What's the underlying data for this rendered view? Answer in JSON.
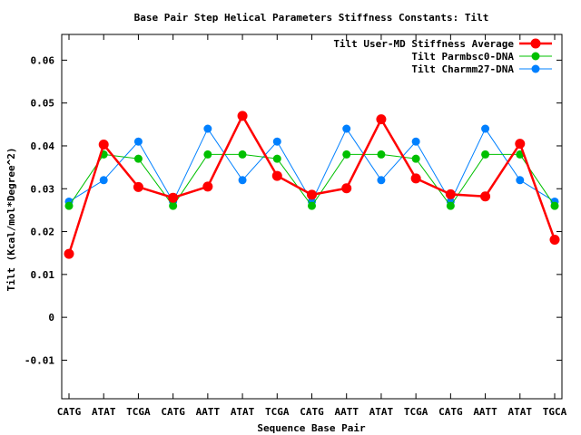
{
  "chart_data": {
    "type": "line",
    "title": "Base Pair Step Helical Parameters Stiffness Constants: Tilt",
    "xlabel": "Sequence Base Pair",
    "ylabel": "Tilt (Kcal/mol*Degree^2)",
    "categories": [
      "CATG",
      "ATAT",
      "TCGA",
      "CATG",
      "AATT",
      "ATAT",
      "TCGA",
      "CATG",
      "AATT",
      "ATAT",
      "TCGA",
      "CATG",
      "AATT",
      "ATAT",
      "TGCA"
    ],
    "ylim": [
      -0.019,
      0.066
    ],
    "yticks": [
      -0.01,
      0,
      0.01,
      0.02,
      0.03,
      0.04,
      0.05,
      0.06
    ],
    "ytick_labels": [
      "-0.01",
      "0",
      "0.01",
      "0.02",
      "0.03",
      "0.04",
      "0.05",
      "0.06"
    ],
    "legend_position": "top-right",
    "series": [
      {
        "name": "Tilt User-MD Stiffness Average",
        "color": "#ff0000",
        "values": [
          0.0148,
          0.0403,
          0.0304,
          0.0279,
          0.0305,
          0.047,
          0.033,
          0.0286,
          0.0301,
          0.0462,
          0.0324,
          0.0287,
          0.0282,
          0.0405,
          0.0181
        ]
      },
      {
        "name": "Tilt Parmbsc0-DNA",
        "color": "#00c000",
        "values": [
          0.026,
          0.038,
          0.037,
          0.026,
          0.038,
          0.038,
          0.037,
          0.026,
          0.038,
          0.038,
          0.037,
          0.026,
          0.038,
          0.038,
          0.026
        ]
      },
      {
        "name": "Tilt Charmm27-DNA",
        "color": "#0080ff",
        "values": [
          0.027,
          0.032,
          0.041,
          0.027,
          0.044,
          0.032,
          0.041,
          0.027,
          0.044,
          0.032,
          0.041,
          0.027,
          0.044,
          0.032,
          0.027
        ]
      }
    ]
  }
}
